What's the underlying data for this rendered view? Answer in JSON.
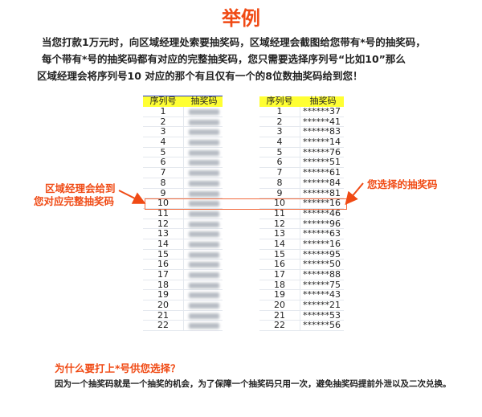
{
  "title": "举例",
  "intro": [
    "当您打款1万元时，向区域经理处索要抽奖码，区域经理会截图给您带有*号的抽奖码，",
    "每个带有*号的抽奖码都有对应的完整抽奖码，您只需要选择序列号“比如10”那么",
    "区域经理会将序列号10 对应的那个有且仅有一个的8位数抽奖码给到您！"
  ],
  "left_table": {
    "headers": [
      "序列号",
      "抽奖码"
    ],
    "seq": [
      "1",
      "2",
      "3",
      "4",
      "5",
      "6",
      "7",
      "8",
      "9",
      "10",
      "11",
      "12",
      "13",
      "14",
      "15",
      "16",
      "17",
      "18",
      "19",
      "20",
      "21",
      "22"
    ]
  },
  "right_table": {
    "headers": [
      "序列号",
      "抽奖码"
    ],
    "rows": [
      [
        "1",
        "******37"
      ],
      [
        "2",
        "******41"
      ],
      [
        "3",
        "******83"
      ],
      [
        "4",
        "******14"
      ],
      [
        "5",
        "******76"
      ],
      [
        "6",
        "******51"
      ],
      [
        "7",
        "******61"
      ],
      [
        "8",
        "******84"
      ],
      [
        "9",
        "******81"
      ],
      [
        "10",
        "******16"
      ],
      [
        "11",
        "******46"
      ],
      [
        "12",
        "******96"
      ],
      [
        "13",
        "******63"
      ],
      [
        "14",
        "******16"
      ],
      [
        "15",
        "******95"
      ],
      [
        "16",
        "******50"
      ],
      [
        "17",
        "******88"
      ],
      [
        "18",
        "******75"
      ],
      [
        "19",
        "******43"
      ],
      [
        "20",
        "******21"
      ],
      [
        "21",
        "******53"
      ],
      [
        "22",
        "******56"
      ]
    ]
  },
  "highlight_row": "10",
  "left_label": [
    "区域经理会给到",
    "您对应完整抽奖码"
  ],
  "right_label": "您选择的抽奖码",
  "question": "为什么要打上*号供您选择？",
  "answer": "因为一个抽奖码就是一个抽奖的机会，为了保障一个抽奖码只用一次，避免抽奖码提前外泄以及二次兑换。",
  "colors": {
    "accent": "#f04a14",
    "header_bg": "#ffff33"
  }
}
